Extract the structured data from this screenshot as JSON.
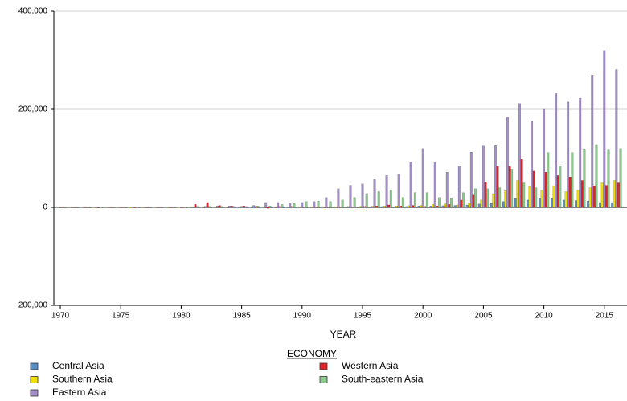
{
  "chart_data": {
    "type": "bar",
    "x_label": "YEAR",
    "legend_title": "ECONOMY",
    "categories": [
      "1970",
      null,
      null,
      null,
      null,
      "1975",
      null,
      null,
      null,
      null,
      "1980",
      null,
      null,
      null,
      null,
      "1985",
      null,
      null,
      null,
      null,
      "1990",
      null,
      null,
      null,
      null,
      "1995",
      null,
      null,
      null,
      null,
      "2000",
      null,
      null,
      null,
      null,
      "2005",
      null,
      null,
      null,
      null,
      "2010",
      null,
      null,
      null,
      null,
      "2015",
      null
    ],
    "ylim": [
      -200000,
      400000
    ],
    "yticks": [
      {
        "value": -200000,
        "label": "-200,000"
      },
      0,
      {
        "value": 200000,
        "label": "200,000"
      },
      {
        "value": 400000,
        "label": "400,000"
      }
    ],
    "grid": true,
    "series": [
      {
        "name": "Central Asia",
        "color": "#5b8fc7",
        "values": [
          0,
          0,
          0,
          0,
          0,
          0,
          0,
          0,
          0,
          0,
          0,
          0,
          0,
          0,
          0,
          0,
          0,
          0,
          0,
          0,
          0,
          0,
          0,
          1000,
          1000,
          1500,
          1500,
          2000,
          1500,
          2000,
          3000,
          3000,
          3500,
          4000,
          5000,
          7000,
          8000,
          12000,
          18000,
          15000,
          18000,
          18000,
          15000,
          14000,
          13000,
          10000,
          10000
        ]
      },
      {
        "name": "Southern Asia",
        "color": "#f0e000",
        "values": [
          500,
          500,
          500,
          -1000,
          500,
          500,
          -1500,
          500,
          500,
          500,
          -1000,
          1000,
          1000,
          1000,
          1000,
          1000,
          1000,
          1000,
          1500,
          1500,
          1000,
          1000,
          1500,
          1500,
          2000,
          2000,
          2500,
          3000,
          3000,
          3500,
          4000,
          6000,
          7000,
          5000,
          8000,
          15000,
          28000,
          34000,
          55000,
          42000,
          35000,
          44000,
          32000,
          35000,
          40000,
          50000,
          55000
        ]
      },
      {
        "name": "Eastern Asia",
        "color": "#a48fc8",
        "values": [
          1000,
          1000,
          1000,
          -1500,
          1000,
          1000,
          -1000,
          1000,
          1000,
          1000,
          -1500,
          1000,
          2000,
          3000,
          3000,
          2000,
          4000,
          10000,
          10000,
          8000,
          10000,
          12000,
          20000,
          38000,
          45000,
          48000,
          57000,
          65000,
          68000,
          92000,
          120000,
          92000,
          72000,
          85000,
          113000,
          125000,
          126000,
          184000,
          212000,
          176000,
          200000,
          232000,
          215000,
          223000,
          270000,
          320000,
          281000
        ]
      },
      {
        "name": "Western Asia",
        "color": "#e0242a",
        "values": [
          1000,
          1000,
          1000,
          -1000,
          1000,
          1000,
          -1000,
          1000,
          1000,
          1000,
          -1000,
          6000,
          10000,
          4000,
          3000,
          3000,
          2000,
          -2000,
          2000,
          2000,
          1000,
          1000,
          1000,
          1000,
          1000,
          2000,
          3000,
          5000,
          3000,
          4000,
          2000,
          3000,
          6000,
          15000,
          25000,
          52000,
          84000,
          84000,
          98000,
          74000,
          72000,
          65000,
          62000,
          55000,
          44000,
          45000,
          50000
        ]
      },
      {
        "name": "South-eastern Asia",
        "color": "#8cc98c",
        "values": [
          1000,
          1000,
          1000,
          -1000,
          1000,
          1000,
          -1000,
          1000,
          1000,
          1000,
          -1000,
          2000,
          2000,
          2000,
          2000,
          2000,
          3000,
          3000,
          6000,
          8000,
          12000,
          13000,
          12000,
          15000,
          20000,
          28000,
          32000,
          36000,
          20000,
          30000,
          30000,
          20000,
          18000,
          30000,
          38000,
          38000,
          40000,
          78000,
          50000,
          40000,
          112000,
          85000,
          112000,
          118000,
          128000,
          117000,
          120000
        ]
      }
    ]
  }
}
